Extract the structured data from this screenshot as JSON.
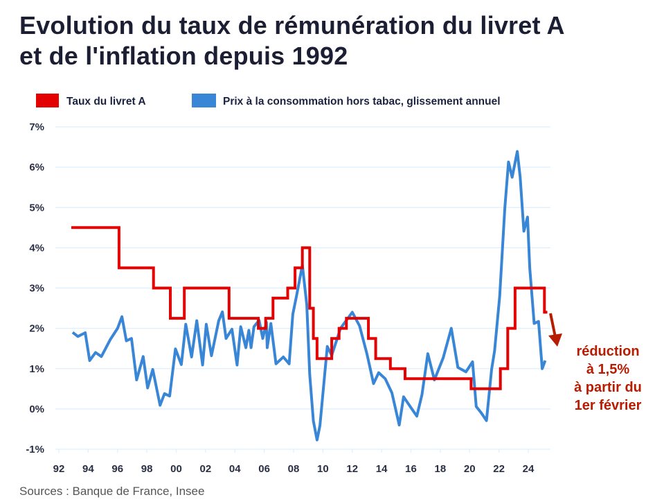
{
  "title": {
    "line1": "Evolution du taux de rémunération du livret A",
    "line2": "et de l'inflation depuis 1992"
  },
  "source": "Sources : Banque de France, Insee",
  "colors": {
    "livret": "#e30000",
    "inflation": "#3a86d6",
    "grid": "#dcefff",
    "annotation": "#b71c00"
  },
  "chart_data": {
    "type": "line",
    "title": "Evolution du taux de rémunération du livret A et de l'inflation depuis 1992",
    "xlabel": "",
    "ylabel": "",
    "xlim": [
      1992,
      2024
    ],
    "ylim": [
      -1,
      7
    ],
    "x_ticks": [
      "92",
      "94",
      "96",
      "98",
      "00",
      "02",
      "04",
      "06",
      "08",
      "10",
      "12",
      "14",
      "16",
      "18",
      "20",
      "22",
      "24"
    ],
    "y_ticks": [
      "7%",
      "6%",
      "5%",
      "4%",
      "3%",
      "2%",
      "1%",
      "0%",
      "-1%"
    ],
    "grid": true,
    "legend_position": "top",
    "legend": [
      "Taux du livret A",
      "Prix à la consommation hors tabac, glissement annuel"
    ],
    "series": [
      {
        "name": "Taux du livret A",
        "kind": "step",
        "x": [
          1992.85,
          1996.1,
          1998.45,
          1999.6,
          2000.55,
          2003.6,
          2005.6,
          2006.1,
          2006.6,
          2007.6,
          2008.1,
          2008.6,
          2009.1,
          2009.35,
          2009.6,
          2010.6,
          2011.1,
          2011.6,
          2013.1,
          2013.6,
          2014.6,
          2015.6,
          2020.1,
          2022.1,
          2022.6,
          2023.1,
          2025.1,
          2025.3
        ],
        "y": [
          4.5,
          3.5,
          3.0,
          2.25,
          3.0,
          2.25,
          2.0,
          2.25,
          2.75,
          3.0,
          3.5,
          4.0,
          2.5,
          1.75,
          1.25,
          1.75,
          2.0,
          2.25,
          1.75,
          1.25,
          1.0,
          0.75,
          0.5,
          1.0,
          2.0,
          3.0,
          2.4,
          2.4
        ]
      },
      {
        "name": "Prix à la consommation hors tabac, glissement annuel",
        "kind": "line",
        "x": [
          1992.94,
          1993.3,
          1993.8,
          1994.1,
          1994.5,
          1994.9,
          1995.5,
          1996.0,
          1996.3,
          1996.6,
          1996.95,
          1997.3,
          1997.75,
          1998.05,
          1998.4,
          1998.9,
          1999.2,
          1999.55,
          1999.95,
          2000.35,
          2000.65,
          2001.05,
          2001.4,
          2001.8,
          2002.05,
          2002.4,
          2002.9,
          2003.15,
          2003.4,
          2003.8,
          2004.15,
          2004.4,
          2004.75,
          2004.95,
          2005.1,
          2005.3,
          2005.65,
          2005.9,
          2006.15,
          2006.2,
          2006.45,
          2006.8,
          2007.3,
          2007.7,
          2007.95,
          2008.2,
          2008.6,
          2008.9,
          2009.1,
          2009.35,
          2009.6,
          2009.8,
          2010.3,
          2010.6,
          2011.2,
          2011.6,
          2012.0,
          2012.5,
          2013.0,
          2013.45,
          2013.8,
          2014.25,
          2014.7,
          2015.2,
          2015.5,
          2015.95,
          2016.4,
          2016.75,
          2017.15,
          2017.6,
          2018.2,
          2018.75,
          2019.2,
          2019.75,
          2020.2,
          2020.45,
          2020.8,
          2021.15,
          2021.5,
          2021.7,
          2022.05,
          2022.4,
          2022.65,
          2022.9,
          2023.25,
          2023.45,
          2023.7,
          2023.95,
          2024.1,
          2024.4,
          2024.7,
          2024.95,
          2025.15
        ],
        "y": [
          1.9,
          1.8,
          1.89,
          1.2,
          1.4,
          1.3,
          1.72,
          2.0,
          2.29,
          1.69,
          1.75,
          0.72,
          1.3,
          0.52,
          0.98,
          0.09,
          0.38,
          0.32,
          1.49,
          1.1,
          2.1,
          1.29,
          2.19,
          1.09,
          2.1,
          1.32,
          2.19,
          2.41,
          1.75,
          1.98,
          1.09,
          2.04,
          1.52,
          1.95,
          1.52,
          2.04,
          2.2,
          1.75,
          2.15,
          1.52,
          2.12,
          1.12,
          1.29,
          1.12,
          2.35,
          2.8,
          3.57,
          2.58,
          0.86,
          -0.3,
          -0.77,
          -0.41,
          1.55,
          1.33,
          2.0,
          2.2,
          2.4,
          2.06,
          1.37,
          0.63,
          0.9,
          0.75,
          0.4,
          -0.4,
          0.3,
          0.06,
          -0.18,
          0.35,
          1.37,
          0.72,
          1.27,
          2.0,
          1.03,
          0.92,
          1.17,
          0.06,
          -0.1,
          -0.29,
          0.98,
          1.44,
          2.8,
          4.98,
          6.13,
          5.75,
          6.39,
          5.75,
          4.41,
          4.76,
          3.5,
          2.12,
          2.17,
          1.0,
          1.2
        ]
      }
    ],
    "annotation": {
      "lines": [
        "réduction",
        "à 1,5%",
        "à partir du",
        "1er février"
      ]
    }
  }
}
